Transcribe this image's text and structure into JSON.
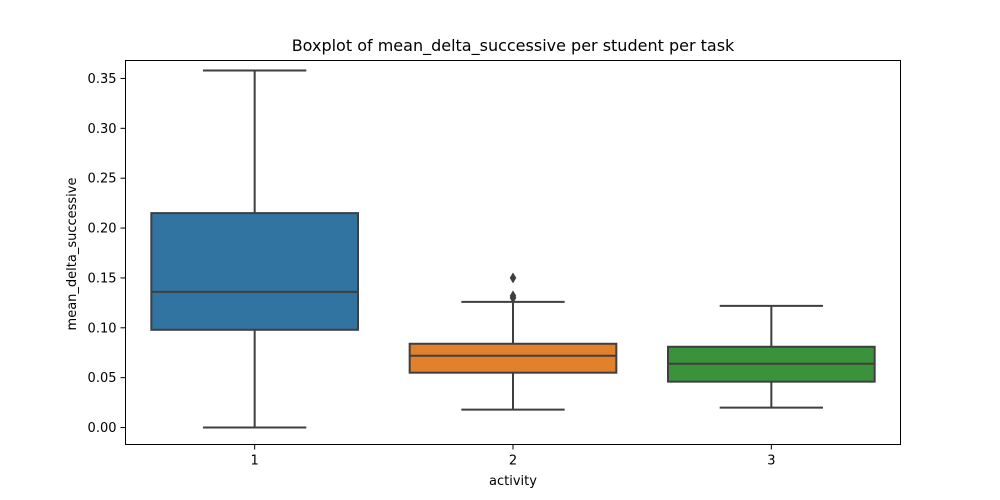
{
  "chart_data": {
    "type": "boxplot",
    "title": "Boxplot of mean_delta_successive per student per task",
    "xlabel": "activity",
    "ylabel": "mean_delta_successive",
    "categories": [
      "1",
      "2",
      "3"
    ],
    "ylim": [
      -0.017,
      0.368
    ],
    "yticks": [
      0.0,
      0.05,
      0.1,
      0.15,
      0.2,
      0.25,
      0.3,
      0.35
    ],
    "ytick_labels": [
      "0.00",
      "0.05",
      "0.10",
      "0.15",
      "0.20",
      "0.25",
      "0.30",
      "0.35"
    ],
    "grid": false,
    "series": [
      {
        "category": "1",
        "color": "#3274a1",
        "whisker_low": 0.0,
        "q1": 0.098,
        "median": 0.136,
        "q3": 0.215,
        "whisker_high": 0.358,
        "outliers": []
      },
      {
        "category": "2",
        "color": "#e1812c",
        "whisker_low": 0.018,
        "q1": 0.055,
        "median": 0.072,
        "q3": 0.084,
        "whisker_high": 0.126,
        "outliers": [
          0.13,
          0.132,
          0.15
        ]
      },
      {
        "category": "3",
        "color": "#3a923a",
        "whisker_low": 0.02,
        "q1": 0.046,
        "median": 0.064,
        "q3": 0.081,
        "whisker_high": 0.122,
        "outliers": []
      }
    ]
  }
}
